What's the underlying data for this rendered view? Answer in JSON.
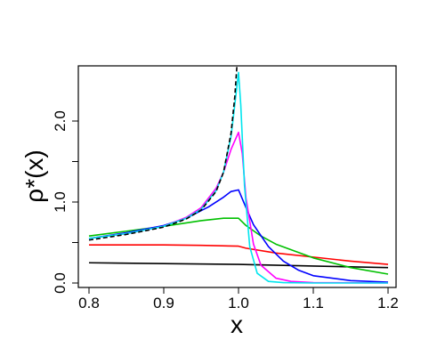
{
  "chart_data": {
    "type": "line",
    "title": "",
    "xlabel": "x",
    "ylabel": "ρ*(x)",
    "xlim": [
      0.8,
      1.2
    ],
    "ylim": [
      0.0,
      2.6
    ],
    "x_ticks": [
      0.8,
      0.9,
      1.0,
      1.1,
      1.2
    ],
    "x_tick_labels": [
      "0.8",
      "0.9",
      "1.0",
      "1.1",
      "1.2"
    ],
    "y_ticks": [
      0.0,
      1.0,
      2.0
    ],
    "y_tick_labels": [
      "0.0",
      "1.0",
      "2.0"
    ],
    "grid": false,
    "legend": "none",
    "series": [
      {
        "color": "#000000",
        "dashed": false,
        "x": [
          0.8,
          0.9,
          1.0,
          1.1,
          1.2
        ],
        "y": [
          0.25,
          0.24,
          0.23,
          0.21,
          0.19
        ]
      },
      {
        "color": "#ff0000",
        "dashed": false,
        "x": [
          0.8,
          0.9,
          0.95,
          1.0,
          1.01,
          1.05,
          1.1,
          1.15,
          1.2
        ],
        "y": [
          0.47,
          0.47,
          0.465,
          0.455,
          0.43,
          0.37,
          0.32,
          0.27,
          0.23
        ]
      },
      {
        "color": "#00c000",
        "dashed": false,
        "x": [
          0.8,
          0.85,
          0.9,
          0.95,
          0.98,
          1.0,
          1.01,
          1.03,
          1.05,
          1.1,
          1.15,
          1.2
        ],
        "y": [
          0.58,
          0.64,
          0.7,
          0.77,
          0.8,
          0.8,
          0.71,
          0.58,
          0.48,
          0.31,
          0.19,
          0.11
        ]
      },
      {
        "color": "#0000ff",
        "dashed": false,
        "x": [
          0.8,
          0.85,
          0.9,
          0.93,
          0.96,
          0.98,
          0.99,
          1.0,
          1.01,
          1.02,
          1.04,
          1.06,
          1.08,
          1.1,
          1.15,
          1.2
        ],
        "y": [
          0.55,
          0.62,
          0.71,
          0.8,
          0.94,
          1.06,
          1.13,
          1.15,
          0.93,
          0.72,
          0.45,
          0.27,
          0.16,
          0.09,
          0.03,
          0.01
        ]
      },
      {
        "color": "#ff00ff",
        "dashed": false,
        "x": [
          0.8,
          0.85,
          0.9,
          0.93,
          0.95,
          0.97,
          0.98,
          0.99,
          1.0,
          1.005,
          1.01,
          1.02,
          1.03,
          1.05,
          1.07,
          1.1,
          1.2
        ],
        "y": [
          0.55,
          0.61,
          0.7,
          0.81,
          0.93,
          1.17,
          1.37,
          1.65,
          1.86,
          1.6,
          1.05,
          0.48,
          0.22,
          0.06,
          0.02,
          0.005,
          0.0
        ]
      },
      {
        "color": "#00e5ee",
        "dashed": false,
        "x": [
          0.8,
          0.85,
          0.9,
          0.93,
          0.95,
          0.97,
          0.98,
          0.99,
          0.995,
          1.0,
          1.003,
          1.008,
          1.015,
          1.025,
          1.04,
          1.06,
          1.1,
          1.2
        ],
        "y": [
          0.55,
          0.61,
          0.7,
          0.8,
          0.91,
          1.14,
          1.37,
          1.81,
          2.2,
          2.6,
          2.2,
          1.2,
          0.45,
          0.12,
          0.02,
          0.005,
          0.0,
          0.0
        ]
      },
      {
        "color": "#000000",
        "dashed": true,
        "x": [
          0.8,
          0.85,
          0.9,
          0.93,
          0.95,
          0.97,
          0.98,
          0.99,
          0.995,
          0.998
        ],
        "y": [
          0.53,
          0.6,
          0.69,
          0.79,
          0.9,
          1.13,
          1.37,
          1.85,
          2.3,
          2.7
        ]
      }
    ]
  }
}
